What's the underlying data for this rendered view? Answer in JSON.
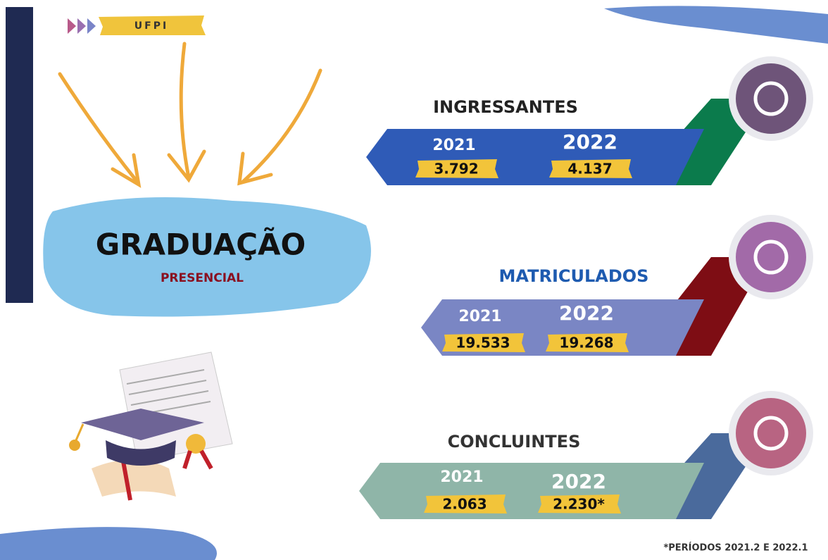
{
  "header": {
    "badge": "UFPI"
  },
  "main": {
    "title": "GRADUAÇÃO",
    "subtitle": "PRESENCIAL"
  },
  "sections": [
    {
      "title": "INGRESSANTES",
      "years": [
        {
          "year": "2021",
          "value": "3.792"
        },
        {
          "year": "2022",
          "value": "4.137"
        }
      ]
    },
    {
      "title": "MATRICULADOS",
      "years": [
        {
          "year": "2021",
          "value": "19.533"
        },
        {
          "year": "2022",
          "value": "19.268"
        }
      ]
    },
    {
      "title": "CONCLUINTES",
      "years": [
        {
          "year": "2021",
          "value": "2.063"
        },
        {
          "year": "2022",
          "value": "2.230*"
        }
      ]
    }
  ],
  "footnote": "*PERÍODOS 2021.2 E 2022.1"
}
